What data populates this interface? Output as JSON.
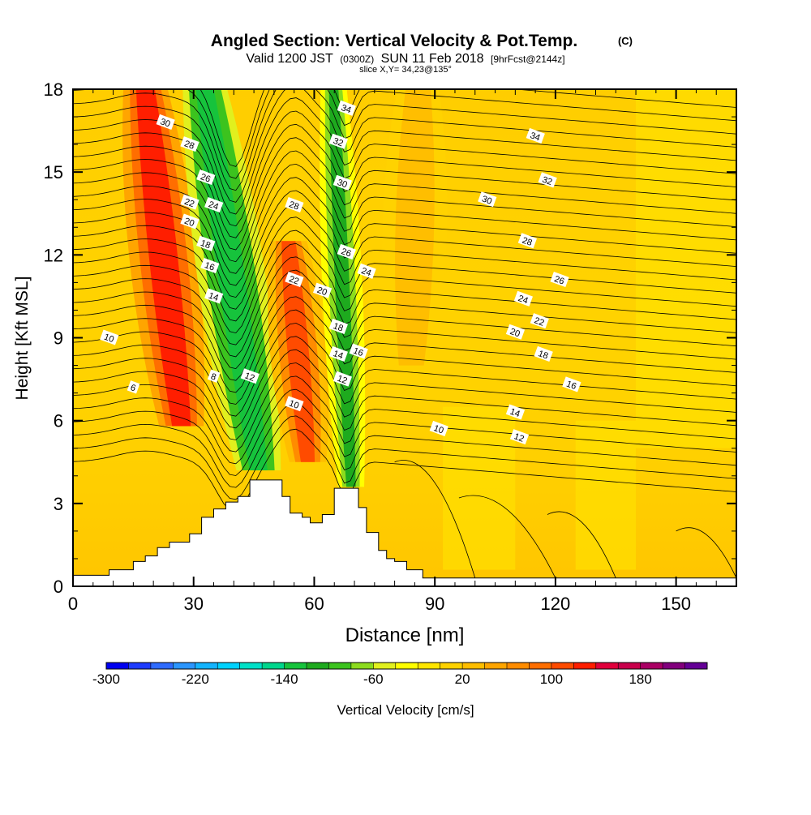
{
  "header": {
    "title": "Angled Section: Vertical Velocity & Pot.Temp.",
    "title_mark": "(C)",
    "valid_prefix": "Valid 1200 JST",
    "valid_zulu": "(0300Z)",
    "valid_date": "SUN 11 Feb 2018",
    "forecast": "[9hrFcst@2144z]",
    "slice": "slice X,Y= 34,23@135°"
  },
  "colors": {
    "ground": "#ffffff",
    "velocity_bins": [
      "#0000f0",
      "#1e3cff",
      "#2e6bff",
      "#2b96ff",
      "#13b4ff",
      "#00d2ff",
      "#00e1c8",
      "#00d68c",
      "#16c33c",
      "#1eaa1e",
      "#3cc31e",
      "#8cdc1e",
      "#e1f01e",
      "#ffff00",
      "#ffe600",
      "#ffd200",
      "#ffbe00",
      "#ffa500",
      "#ff8c00",
      "#ff6e00",
      "#ff4b00",
      "#ff1e00",
      "#e1003c",
      "#c8004b",
      "#aa0064",
      "#82007d",
      "#640096"
    ]
  },
  "chart_data": {
    "type": "heatmap",
    "xlabel": "Distance [nm]",
    "ylabel": "Height [Kft MSL]",
    "xlim": [
      0,
      165
    ],
    "ylim": [
      0,
      18
    ],
    "x_ticks": [
      "0",
      "30",
      "60",
      "90",
      "120",
      "150"
    ],
    "y_ticks": [
      "0",
      "3",
      "6",
      "9",
      "12",
      "15",
      "18"
    ],
    "colorbar": {
      "label": "Vertical Velocity [cm/s]",
      "min": -300,
      "max": 240,
      "step": 20,
      "tick_labels": [
        "-300",
        "-220",
        "-140",
        "-60",
        "20",
        "100",
        "180"
      ]
    },
    "velocity_features": [
      {
        "name": "updraft-west",
        "x": 23,
        "y": 13,
        "value": 130
      },
      {
        "name": "downdraft-west",
        "x": 40,
        "y": 12,
        "value": -130
      },
      {
        "name": "updraft-central",
        "x": 55,
        "y": 9,
        "value": 110
      },
      {
        "name": "downdraft-central",
        "x": 67,
        "y": 12,
        "value": -110
      },
      {
        "name": "updraft-east",
        "x": 85,
        "y": 15,
        "value": 50
      }
    ],
    "isentrope_labels": [
      {
        "text": "30",
        "x": 23,
        "y": 16.8
      },
      {
        "text": "28",
        "x": 29,
        "y": 16.0
      },
      {
        "text": "26",
        "x": 33,
        "y": 14.8
      },
      {
        "text": "24",
        "x": 35,
        "y": 13.8
      },
      {
        "text": "22",
        "x": 29,
        "y": 13.9
      },
      {
        "text": "20",
        "x": 29,
        "y": 13.2
      },
      {
        "text": "18",
        "x": 33,
        "y": 12.4
      },
      {
        "text": "16",
        "x": 34,
        "y": 11.6
      },
      {
        "text": "14",
        "x": 35,
        "y": 10.5
      },
      {
        "text": "10",
        "x": 9,
        "y": 9.0
      },
      {
        "text": "8",
        "x": 35,
        "y": 7.6
      },
      {
        "text": "12",
        "x": 44,
        "y": 7.6
      },
      {
        "text": "6",
        "x": 15,
        "y": 7.2
      },
      {
        "text": "10",
        "x": 55,
        "y": 6.6
      },
      {
        "text": "28",
        "x": 55,
        "y": 13.8
      },
      {
        "text": "22",
        "x": 55,
        "y": 11.1
      },
      {
        "text": "20",
        "x": 62,
        "y": 10.7
      },
      {
        "text": "34",
        "x": 68,
        "y": 17.3
      },
      {
        "text": "32",
        "x": 66,
        "y": 16.1
      },
      {
        "text": "30",
        "x": 67,
        "y": 14.6
      },
      {
        "text": "26",
        "x": 68,
        "y": 12.1
      },
      {
        "text": "24",
        "x": 73,
        "y": 11.4
      },
      {
        "text": "18",
        "x": 66,
        "y": 9.4
      },
      {
        "text": "14",
        "x": 66,
        "y": 8.4
      },
      {
        "text": "16",
        "x": 71,
        "y": 8.5
      },
      {
        "text": "12",
        "x": 67,
        "y": 7.5
      },
      {
        "text": "34",
        "x": 115,
        "y": 16.3
      },
      {
        "text": "32",
        "x": 118,
        "y": 14.7
      },
      {
        "text": "30",
        "x": 103,
        "y": 14.0
      },
      {
        "text": "28",
        "x": 113,
        "y": 12.5
      },
      {
        "text": "26",
        "x": 121,
        "y": 11.1
      },
      {
        "text": "24",
        "x": 112,
        "y": 10.4
      },
      {
        "text": "22",
        "x": 116,
        "y": 9.6
      },
      {
        "text": "20",
        "x": 110,
        "y": 9.2
      },
      {
        "text": "18",
        "x": 117,
        "y": 8.4
      },
      {
        "text": "16",
        "x": 124,
        "y": 7.3
      },
      {
        "text": "14",
        "x": 110,
        "y": 6.3
      },
      {
        "text": "12",
        "x": 111,
        "y": 5.4
      },
      {
        "text": "10",
        "x": 91,
        "y": 5.7
      }
    ],
    "terrain": [
      [
        0,
        0.4
      ],
      [
        9,
        0.4
      ],
      [
        9,
        0.6
      ],
      [
        15,
        0.6
      ],
      [
        15,
        0.9
      ],
      [
        18,
        0.9
      ],
      [
        18,
        1.1
      ],
      [
        21,
        1.1
      ],
      [
        21,
        1.4
      ],
      [
        24,
        1.4
      ],
      [
        24,
        1.6
      ],
      [
        29,
        1.6
      ],
      [
        29,
        1.9
      ],
      [
        32,
        1.9
      ],
      [
        32,
        2.5
      ],
      [
        35,
        2.5
      ],
      [
        35,
        2.8
      ],
      [
        38,
        2.8
      ],
      [
        38,
        3.05
      ],
      [
        41,
        3.05
      ],
      [
        41,
        3.25
      ],
      [
        44,
        3.25
      ],
      [
        44,
        3.85
      ],
      [
        52,
        3.85
      ],
      [
        52,
        3.25
      ],
      [
        54,
        3.25
      ],
      [
        54,
        2.65
      ],
      [
        57,
        2.65
      ],
      [
        57,
        2.5
      ],
      [
        59,
        2.5
      ],
      [
        59,
        2.3
      ],
      [
        62,
        2.3
      ],
      [
        62,
        2.6
      ],
      [
        65,
        2.6
      ],
      [
        65,
        3.55
      ],
      [
        71,
        3.55
      ],
      [
        71,
        2.85
      ],
      [
        73,
        2.85
      ],
      [
        73,
        1.95
      ],
      [
        76,
        1.95
      ],
      [
        76,
        1.3
      ],
      [
        78,
        1.3
      ],
      [
        78,
        1.0
      ],
      [
        80,
        1.0
      ],
      [
        80,
        0.9
      ],
      [
        83,
        0.9
      ],
      [
        83,
        0.6
      ],
      [
        87,
        0.6
      ],
      [
        87,
        0.3
      ],
      [
        165,
        0.3
      ]
    ]
  }
}
